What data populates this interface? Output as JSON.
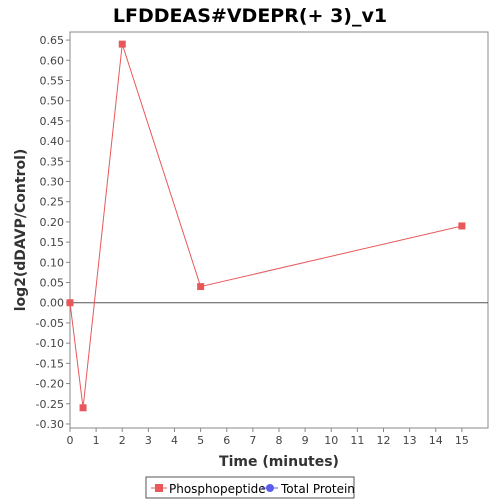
{
  "chart_data": {
    "type": "line",
    "title": "LFDDEAS#VDEPR(+ 3)_v1",
    "xlabel": "Time (minutes)",
    "ylabel": "log2(dDAVP/Control)",
    "xlim": [
      0,
      16
    ],
    "ylim": [
      -0.31,
      0.67
    ],
    "x_ticks": [
      0,
      1,
      2,
      3,
      4,
      5,
      6,
      7,
      8,
      9,
      10,
      11,
      12,
      13,
      14,
      15
    ],
    "y_ticks": [
      -0.3,
      -0.25,
      -0.2,
      -0.15,
      -0.1,
      -0.05,
      0.0,
      0.05,
      0.1,
      0.15,
      0.2,
      0.25,
      0.3,
      0.35,
      0.4,
      0.45,
      0.5,
      0.55,
      0.6,
      0.65
    ],
    "grid": false,
    "legend_position": "bottom",
    "series": [
      {
        "name": "Phosphopeptide",
        "color": "#e8585a",
        "marker": "square",
        "x": [
          0,
          0.5,
          2,
          5,
          15
        ],
        "y": [
          0.0,
          -0.26,
          0.64,
          0.04,
          0.19
        ]
      },
      {
        "name": "Total Protein",
        "color": "#5b5bf0",
        "marker": "circle",
        "x": [],
        "y": []
      }
    ]
  }
}
